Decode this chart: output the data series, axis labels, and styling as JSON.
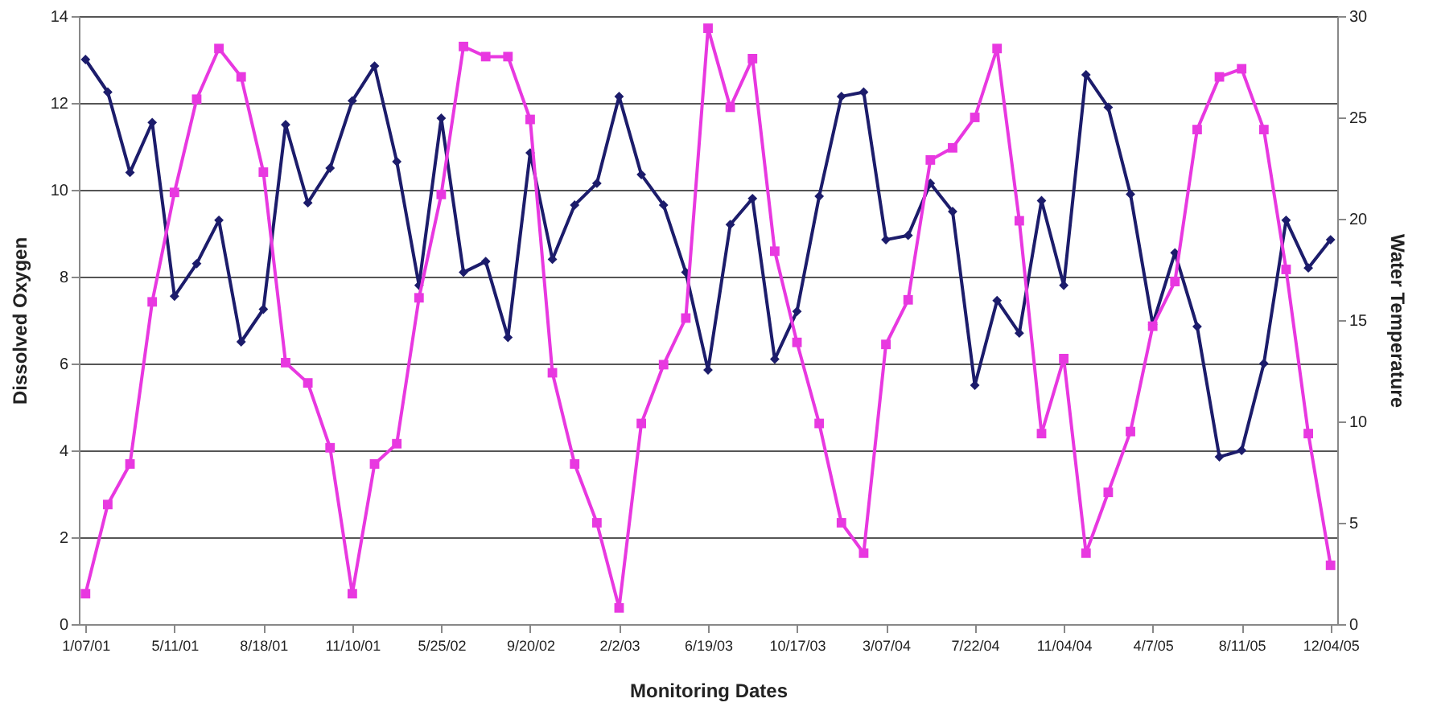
{
  "chart_data": {
    "type": "line",
    "xlabel": "Monitoring Dates",
    "ylabel": "Dissolved Oxygen",
    "y2label": "Water Temperature",
    "categories": [
      "1/07/01",
      null,
      null,
      null,
      "5/11/01",
      null,
      null,
      null,
      "8/18/01",
      null,
      null,
      null,
      "11/10/01",
      null,
      null,
      null,
      "5/25/02",
      null,
      null,
      null,
      "9/20/02",
      null,
      null,
      null,
      "2/2/03",
      null,
      null,
      null,
      "6/19/03",
      null,
      null,
      null,
      "10/17/03",
      null,
      null,
      null,
      "3/07/04",
      null,
      null,
      null,
      "7/22/04",
      null,
      null,
      null,
      "11/04/04",
      null,
      null,
      null,
      "4/7/05",
      null,
      null,
      null,
      "8/11/05",
      null,
      null,
      null,
      "12/04/05"
    ],
    "series": [
      {
        "color": "#1c1c6b",
        "marker": "diamond",
        "values": [
          13.0,
          12.25,
          10.4,
          11.55,
          7.55,
          8.3,
          9.3,
          6.5,
          7.25,
          11.5,
          9.7,
          10.5,
          12.05,
          12.85,
          10.65,
          7.8,
          11.65,
          8.1,
          8.35,
          6.6,
          10.85,
          8.4,
          9.65,
          10.15,
          12.15,
          10.35,
          9.65,
          8.1,
          5.85,
          9.2,
          9.8,
          6.1,
          7.2,
          9.85,
          12.15,
          12.25,
          8.85,
          8.95,
          10.15,
          9.5,
          5.5,
          7.45,
          6.7,
          9.75,
          7.8,
          12.65,
          11.9,
          9.9,
          6.9,
          8.55,
          6.85,
          3.85,
          4.0,
          6.0,
          9.3,
          8.2,
          8.85
        ]
      },
      {
        "color": "#e838e0",
        "marker": "square",
        "axis": "y2",
        "values": [
          1.5,
          5.9,
          7.9,
          15.9,
          21.3,
          25.9,
          28.4,
          27.0,
          22.3,
          12.9,
          11.9,
          8.7,
          1.5,
          7.9,
          8.9,
          16.1,
          21.2,
          28.5,
          28.0,
          28.0,
          24.9,
          12.4,
          7.9,
          5.0,
          0.8,
          9.9,
          12.8,
          15.1,
          29.4,
          25.5,
          27.9,
          18.4,
          13.9,
          9.9,
          5.0,
          3.5,
          13.8,
          16.0,
          22.9,
          23.5,
          25.0,
          28.4,
          19.9,
          9.4,
          13.1,
          3.5,
          6.5,
          9.5,
          14.7,
          16.9,
          24.4,
          27.0,
          27.4,
          24.4,
          17.5,
          9.4,
          2.9
        ]
      }
    ],
    "ylim": [
      0,
      14
    ],
    "yticks": [
      0,
      2,
      4,
      6,
      8,
      10,
      12,
      14
    ],
    "y2lim": [
      0,
      30
    ],
    "y2ticks": [
      0,
      5,
      10,
      15,
      20,
      25,
      30
    ],
    "grid": "y",
    "legend": false,
    "line_style": "solid"
  }
}
